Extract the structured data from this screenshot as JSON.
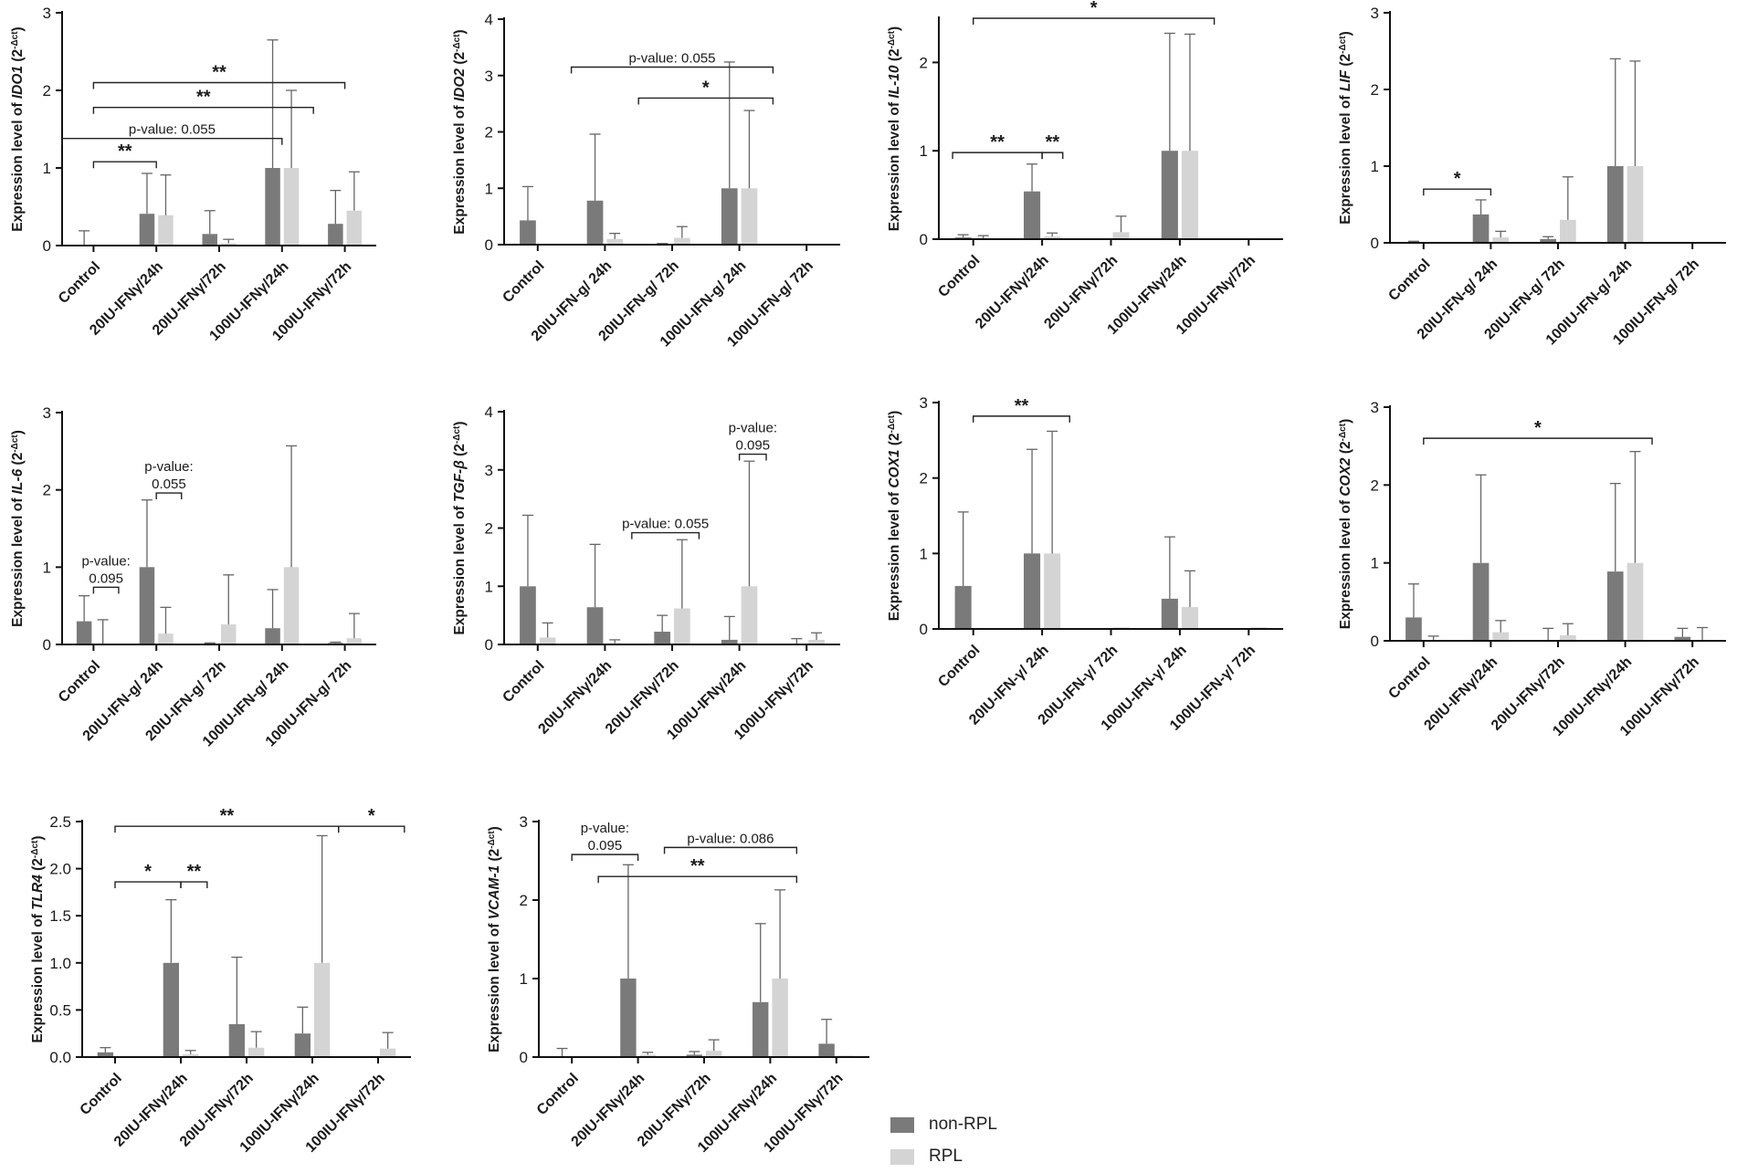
{
  "legend": [
    {
      "name": "non-RPL",
      "color": "#7a7a7a"
    },
    {
      "name": "RPL",
      "color": "#d4d4d4"
    }
  ],
  "chart_data": [
    {
      "id": "IDO1",
      "type": "bar",
      "ylabel": "Expression level of",
      "gene": "IDO1",
      "yunit": "(2",
      "ylim": [
        0,
        3
      ],
      "yticks": [
        0,
        1,
        2,
        3
      ],
      "ytick_labels": [
        "0",
        "1",
        "2",
        "3"
      ],
      "categories": [
        "Control",
        "20IU-IFNγ/24h",
        "20IU-IFNγ/72h",
        "100IU-IFNγ/24h",
        "100IU-IFNγ/72h"
      ],
      "series": [
        {
          "name": "non-RPL",
          "values": [
            0.01,
            0.41,
            0.15,
            1.0,
            0.28
          ],
          "errors": [
            0.18,
            0.52,
            0.3,
            1.65,
            0.43
          ]
        },
        {
          "name": "RPL",
          "values": [
            0.0,
            0.39,
            0.03,
            1.0,
            0.45
          ],
          "errors": [
            0.0,
            0.52,
            0.05,
            1.0,
            0.5
          ]
        }
      ],
      "annotations": [
        {
          "x1": 0.0,
          "x2": 4.0,
          "y": 2.1,
          "text": "**"
        },
        {
          "x1": 0.0,
          "x2": 3.5,
          "y": 1.78,
          "text": "**"
        },
        {
          "x1": -0.5,
          "x2": 3.0,
          "y": 1.38,
          "text": "p-value: 0.055"
        },
        {
          "x1": 0.0,
          "x2": 1.0,
          "y": 1.08,
          "text": "**"
        }
      ]
    },
    {
      "id": "IDO2",
      "type": "bar",
      "ylabel": "Expression level of",
      "gene": "IDO2",
      "yunit": "(2",
      "ylim": [
        0,
        4
      ],
      "yticks": [
        0,
        1,
        2,
        3,
        4
      ],
      "ytick_labels": [
        "0",
        "1",
        "2",
        "3",
        "4"
      ],
      "categories": [
        "Control",
        "20IU-IFN-g/ 24h",
        "20IU-IFN-g/ 72h",
        "100IU-IFN-g/ 24h",
        "100IU-IFN-g/ 72h"
      ],
      "series": [
        {
          "name": "non-RPL",
          "values": [
            0.43,
            0.78,
            0.01,
            1.0,
            0.0
          ],
          "errors": [
            0.6,
            1.18,
            0.01,
            2.24,
            0.0
          ]
        },
        {
          "name": "RPL",
          "values": [
            0.0,
            0.1,
            0.12,
            1.0,
            0.0
          ],
          "errors": [
            0.0,
            0.1,
            0.2,
            1.38,
            0.0
          ]
        }
      ],
      "annotations": [
        {
          "x1": 0.5,
          "x2": 3.5,
          "y": 3.15,
          "text": "p-value: 0.055"
        },
        {
          "x1": 1.5,
          "x2": 3.5,
          "y": 2.6,
          "text": "*"
        }
      ]
    },
    {
      "id": "IL10",
      "type": "bar",
      "ylabel": "Expression level of",
      "gene": "IL-10",
      "yunit": "(2",
      "ylim": [
        0,
        2.5
      ],
      "yticks": [
        0,
        1,
        2
      ],
      "ytick_labels": [
        "0",
        "1",
        "2"
      ],
      "categories": [
        "Control",
        "20IU-IFNγ/24h",
        "20IU-IFNγ/72h",
        "100IU-IFNγ/24h",
        "100IU-IFNγ/72h"
      ],
      "series": [
        {
          "name": "non-RPL",
          "values": [
            0.02,
            0.54,
            0.0,
            1.0,
            0.0
          ],
          "errors": [
            0.03,
            0.31,
            0.0,
            1.33,
            0.0
          ]
        },
        {
          "name": "RPL",
          "values": [
            0.01,
            0.03,
            0.08,
            1.0,
            0.0
          ],
          "errors": [
            0.03,
            0.04,
            0.18,
            1.32,
            0.0
          ]
        }
      ],
      "annotations": [
        {
          "x1": 0.0,
          "x2": 3.5,
          "y": 2.5,
          "text": "*"
        },
        {
          "x1": -0.3,
          "x2": 1.0,
          "y": 0.98,
          "text": "**"
        },
        {
          "x1": 1.0,
          "x2": 1.3,
          "y": 0.98,
          "text": "**"
        }
      ]
    },
    {
      "id": "LIF",
      "type": "bar",
      "ylabel": "Expression level of",
      "gene": "LIF",
      "yunit": "(2",
      "ylim": [
        0,
        3
      ],
      "yticks": [
        0,
        1,
        2,
        3
      ],
      "ytick_labels": [
        "0",
        "1",
        "2",
        "3"
      ],
      "categories": [
        "Control",
        "20IU-IFN-g/ 24h",
        "20IU-IFN-g/ 72h",
        "100IU-IFN-g/ 24h",
        "100IU-IFN-g/ 72h"
      ],
      "series": [
        {
          "name": "non-RPL",
          "values": [
            0.01,
            0.37,
            0.05,
            1.0,
            0.0
          ],
          "errors": [
            0.01,
            0.19,
            0.03,
            1.4,
            0.0
          ]
        },
        {
          "name": "RPL",
          "values": [
            0.0,
            0.07,
            0.3,
            1.0,
            0.0
          ],
          "errors": [
            0.0,
            0.08,
            0.56,
            1.37,
            0.0
          ]
        }
      ],
      "annotations": [
        {
          "x1": 0.0,
          "x2": 1.0,
          "y": 0.7,
          "text": "*"
        }
      ]
    },
    {
      "id": "IL6",
      "type": "bar",
      "ylabel": "Expression level of",
      "gene": "IL-6",
      "yunit": "(2",
      "ylim": [
        0,
        3
      ],
      "yticks": [
        0,
        1,
        2,
        3
      ],
      "ytick_labels": [
        "0",
        "1",
        "2",
        "3"
      ],
      "categories": [
        "Control",
        "20IU-IFN-g/ 24h",
        "20IU-IFN-g/ 72h",
        "100IU-IFN-g/ 24h",
        "100IU-IFN-g/ 72h"
      ],
      "series": [
        {
          "name": "non-RPL",
          "values": [
            0.3,
            1.0,
            0.01,
            0.21,
            0.02
          ],
          "errors": [
            0.33,
            0.87,
            0.01,
            0.5,
            0.01
          ]
        },
        {
          "name": "RPL",
          "values": [
            0.01,
            0.14,
            0.26,
            1.0,
            0.08
          ],
          "errors": [
            0.31,
            0.34,
            0.64,
            1.57,
            0.32
          ]
        }
      ],
      "annotations": [
        {
          "x1": 0.0,
          "x2": 0.4,
          "y": 0.74,
          "text": "p-value:",
          "text2": "0.095"
        },
        {
          "x1": 1.0,
          "x2": 1.4,
          "y": 1.96,
          "text": "p-value:",
          "text2": "0.055"
        }
      ]
    },
    {
      "id": "TGFB",
      "type": "bar",
      "ylabel": "Expression level of",
      "gene": "TGF-β",
      "yunit": "(2",
      "ylim": [
        0,
        4
      ],
      "yticks": [
        0,
        1,
        2,
        3,
        4
      ],
      "ytick_labels": [
        "0",
        "1",
        "2",
        "3",
        "4"
      ],
      "categories": [
        "Control",
        "20IU-IFNγ/24h",
        "20IU-IFNγ/72h",
        "100IU-IFNγ/24h",
        "100IU-IFNγ/72h"
      ],
      "series": [
        {
          "name": "non-RPL",
          "values": [
            1.0,
            0.64,
            0.22,
            0.08,
            0.01
          ],
          "errors": [
            1.22,
            1.08,
            0.28,
            0.4,
            0.09
          ]
        },
        {
          "name": "RPL",
          "values": [
            0.12,
            0.02,
            0.62,
            1.0,
            0.08
          ],
          "errors": [
            0.25,
            0.06,
            1.18,
            2.15,
            0.12
          ]
        }
      ],
      "annotations": [
        {
          "x1": 1.4,
          "x2": 2.4,
          "y": 1.92,
          "text": "p-value: 0.055"
        },
        {
          "x1": 3.0,
          "x2": 3.4,
          "y": 3.27,
          "text": "p-value:",
          "text2": "0.095"
        }
      ]
    },
    {
      "id": "COX1",
      "type": "bar",
      "ylabel": "Expression level of",
      "gene": "COX1",
      "yunit": "(2",
      "ylim": [
        0,
        3
      ],
      "yticks": [
        0,
        1,
        2,
        3
      ],
      "ytick_labels": [
        "0",
        "1",
        "2",
        "3"
      ],
      "categories": [
        "Control",
        "20IU-IFN-γ/ 24h",
        "20IU-IFN-γ/ 72h",
        "100IU-IFN-γ/ 24h",
        "100IU-IFN-γ/ 72h"
      ],
      "series": [
        {
          "name": "non-RPL",
          "values": [
            0.57,
            1.0,
            0.0,
            0.4,
            0.0
          ],
          "errors": [
            0.98,
            1.38,
            0.0,
            0.82,
            0.0
          ]
        },
        {
          "name": "RPL",
          "values": [
            0.0,
            1.0,
            0.02,
            0.29,
            0.02
          ],
          "errors": [
            0.0,
            1.62,
            0.0,
            0.48,
            0.0
          ]
        }
      ],
      "annotations": [
        {
          "x1": 0.0,
          "x2": 1.4,
          "y": 2.82,
          "text": "**"
        }
      ]
    },
    {
      "id": "COX2",
      "type": "bar",
      "ylabel": "Expression level of",
      "gene": "COX2",
      "yunit": "(2",
      "ylim": [
        0,
        3
      ],
      "yticks": [
        0,
        1,
        2,
        3
      ],
      "ytick_labels": [
        "0",
        "1",
        "2",
        "3"
      ],
      "categories": [
        "Control",
        "20IU-IFNγ/24h",
        "20IU-IFNγ/72h",
        "100IU-IFNγ/24h",
        "100IU-IFNγ/72h"
      ],
      "series": [
        {
          "name": "non-RPL",
          "values": [
            0.3,
            1.0,
            0.01,
            0.89,
            0.05
          ],
          "errors": [
            0.43,
            1.13,
            0.15,
            1.13,
            0.11
          ]
        },
        {
          "name": "RPL",
          "values": [
            0.01,
            0.11,
            0.07,
            1.0,
            0.01
          ],
          "errors": [
            0.05,
            0.15,
            0.15,
            1.43,
            0.16
          ]
        }
      ],
      "annotations": [
        {
          "x1": 0.0,
          "x2": 3.4,
          "y": 2.6,
          "text": "*"
        }
      ]
    },
    {
      "id": "TLR4",
      "type": "bar",
      "ylabel": "Expression level of",
      "gene": "TLR4",
      "yunit": "(2",
      "ylim": [
        0,
        2.5
      ],
      "yticks": [
        0,
        0.5,
        1,
        1.5,
        2,
        2.5
      ],
      "ytick_labels": [
        "0.0",
        "0.5",
        "1.0",
        "1.5",
        "2.0",
        "2.5"
      ],
      "categories": [
        "Control",
        "20IU-IFNγ/24h",
        "20IU-IFNγ/72h",
        "100IU-IFNγ/24h",
        "100IU-IFNγ/72h"
      ],
      "series": [
        {
          "name": "non-RPL",
          "values": [
            0.05,
            1.0,
            0.35,
            0.25,
            0.01
          ],
          "errors": [
            0.05,
            0.67,
            0.71,
            0.28,
            0.0
          ]
        },
        {
          "name": "RPL",
          "values": [
            0.0,
            0.03,
            0.1,
            1.0,
            0.09
          ],
          "errors": [
            0.0,
            0.04,
            0.17,
            1.35,
            0.17
          ]
        }
      ],
      "annotations": [
        {
          "x1": 0.0,
          "x2": 3.4,
          "y": 2.45,
          "text": "**"
        },
        {
          "x1": 3.4,
          "x2": 4.4,
          "y": 2.45,
          "text": "*"
        },
        {
          "x1": 0.0,
          "x2": 1.0,
          "y": 1.86,
          "text": "*"
        },
        {
          "x1": 1.0,
          "x2": 1.4,
          "y": 1.86,
          "text": "**"
        }
      ]
    },
    {
      "id": "VCAM1",
      "type": "bar",
      "ylabel": "Expression level of",
      "gene": "VCAM-1",
      "yunit": "(2",
      "ylim": [
        0,
        3
      ],
      "yticks": [
        0,
        1,
        2,
        3
      ],
      "ytick_labels": [
        "0",
        "1",
        "2",
        "3"
      ],
      "categories": [
        "Control",
        "20IU-IFNγ/24h",
        "20IU-IFNγ/72h",
        "100IU-IFNγ/24h",
        "100IU-IFNγ/72h"
      ],
      "series": [
        {
          "name": "non-RPL",
          "values": [
            0.01,
            1.0,
            0.03,
            0.7,
            0.17
          ],
          "errors": [
            0.1,
            1.45,
            0.04,
            1.0,
            0.31
          ]
        },
        {
          "name": "RPL",
          "values": [
            0.0,
            0.03,
            0.08,
            1.0,
            0.02
          ],
          "errors": [
            0.0,
            0.03,
            0.14,
            1.13,
            0.0
          ]
        }
      ],
      "annotations": [
        {
          "x1": 0.0,
          "x2": 1.0,
          "y": 2.58,
          "text": "p-value:",
          "text2": "0.095"
        },
        {
          "x1": 1.4,
          "x2": 3.4,
          "y": 2.67,
          "text": "p-value: 0.086"
        },
        {
          "x1": 0.4,
          "x2": 3.4,
          "y": 2.3,
          "text": "**"
        }
      ]
    }
  ]
}
